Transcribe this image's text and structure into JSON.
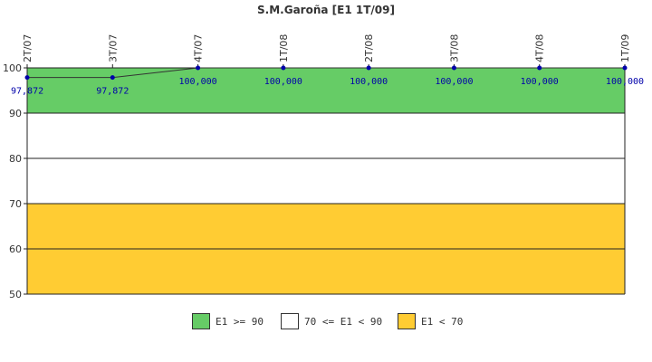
{
  "chart_data": {
    "type": "line",
    "title": "S.M.Garoña [E1 1T/09]",
    "categories": [
      "2T/07",
      "3T/07",
      "4T/07",
      "1T/08",
      "2T/08",
      "3T/08",
      "4T/08",
      "1T/09"
    ],
    "values": [
      97.872,
      97.872,
      100,
      100,
      100,
      100,
      100,
      100
    ],
    "value_labels": [
      "97,872",
      "97,872",
      "100,000",
      "100,000",
      "100,000",
      "100,000",
      "100,000",
      "100,000"
    ],
    "ylim": [
      50,
      100
    ],
    "yticks": [
      "50",
      "60",
      "70",
      "80",
      "90",
      "100"
    ],
    "ytick_values": [
      50,
      60,
      70,
      80,
      90,
      100
    ],
    "bands": [
      {
        "label": "E1 >= 90",
        "from": 90,
        "to": 100,
        "color": "#66cc66"
      },
      {
        "label": "70 <= E1 < 90",
        "from": 70,
        "to": 90,
        "color": "#ffffff"
      },
      {
        "label": "E1 < 70",
        "from": 50,
        "to": 70,
        "color": "#ffcc33"
      }
    ],
    "line_color": "#333333",
    "marker_color": "#0000aa",
    "legend_placement": "bottom"
  }
}
